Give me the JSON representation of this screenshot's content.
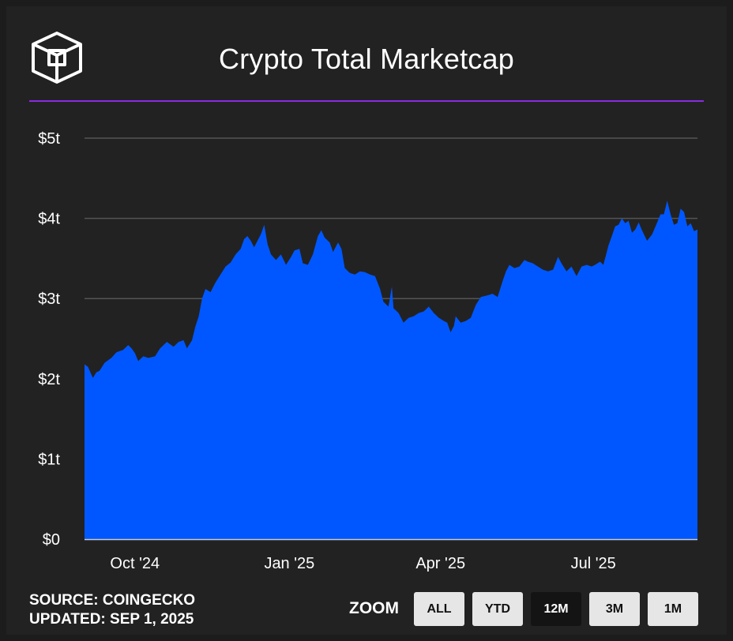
{
  "header": {
    "title": "Crypto Total Marketcap",
    "logo_icon": "cube-logo-icon"
  },
  "footer": {
    "source": "SOURCE: COINGECKO",
    "updated": "UPDATED: SEP 1, 2025",
    "zoom_label": "ZOOM",
    "zoom_buttons": [
      "ALL",
      "YTD",
      "12M",
      "3M",
      "1M"
    ],
    "zoom_selected": "12M"
  },
  "colors": {
    "background": "#222222",
    "area": "#0057ff",
    "accent_rule": "#8a2be2",
    "grid": "#555555"
  },
  "chart_data": {
    "type": "area",
    "title": "Crypto Total Marketcap",
    "xlabel": "",
    "ylabel": "",
    "x_tick_labels": [
      "Oct '24",
      "Jan '25",
      "Apr '25",
      "Jul '25"
    ],
    "x_ticks": [
      "2024-10-01",
      "2025-01-01",
      "2025-04-01",
      "2025-07-01"
    ],
    "y_tick_labels": [
      "$0",
      "$1t",
      "$2t",
      "$3t",
      "$4t",
      "$5t"
    ],
    "y_ticks": [
      0,
      1,
      2,
      3,
      4,
      5
    ],
    "ylim": [
      0,
      5
    ],
    "xlim": [
      "2024-09-01",
      "2025-09-01"
    ],
    "y_units": "trillion USD",
    "grid": true,
    "series": [
      {
        "values": [
          [
            "2024-09-01",
            2.18
          ],
          [
            "2024-09-03",
            2.15
          ],
          [
            "2024-09-06",
            2.01
          ],
          [
            "2024-09-08",
            2.08
          ],
          [
            "2024-09-10",
            2.1
          ],
          [
            "2024-09-13",
            2.2
          ],
          [
            "2024-09-17",
            2.26
          ],
          [
            "2024-09-20",
            2.33
          ],
          [
            "2024-09-24",
            2.36
          ],
          [
            "2024-09-27",
            2.42
          ],
          [
            "2024-09-29",
            2.38
          ],
          [
            "2024-10-01",
            2.32
          ],
          [
            "2024-10-03",
            2.22
          ],
          [
            "2024-10-06",
            2.28
          ],
          [
            "2024-10-09",
            2.26
          ],
          [
            "2024-10-13",
            2.28
          ],
          [
            "2024-10-16",
            2.38
          ],
          [
            "2024-10-20",
            2.46
          ],
          [
            "2024-10-24",
            2.4
          ],
          [
            "2024-10-27",
            2.46
          ],
          [
            "2024-10-30",
            2.48
          ],
          [
            "2024-11-01",
            2.38
          ],
          [
            "2024-11-04",
            2.48
          ],
          [
            "2024-11-06",
            2.65
          ],
          [
            "2024-11-08",
            2.78
          ],
          [
            "2024-11-10",
            3.0
          ],
          [
            "2024-11-12",
            3.12
          ],
          [
            "2024-11-15",
            3.08
          ],
          [
            "2024-11-18",
            3.2
          ],
          [
            "2024-11-21",
            3.3
          ],
          [
            "2024-11-24",
            3.4
          ],
          [
            "2024-11-27",
            3.45
          ],
          [
            "2024-11-30",
            3.55
          ],
          [
            "2024-12-03",
            3.62
          ],
          [
            "2024-12-05",
            3.74
          ],
          [
            "2024-12-07",
            3.78
          ],
          [
            "2024-12-09",
            3.72
          ],
          [
            "2024-12-11",
            3.64
          ],
          [
            "2024-12-13",
            3.72
          ],
          [
            "2024-12-15",
            3.8
          ],
          [
            "2024-12-17",
            3.92
          ],
          [
            "2024-12-19",
            3.68
          ],
          [
            "2024-12-21",
            3.55
          ],
          [
            "2024-12-24",
            3.48
          ],
          [
            "2024-12-27",
            3.55
          ],
          [
            "2024-12-30",
            3.42
          ],
          [
            "2025-01-02",
            3.52
          ],
          [
            "2025-01-04",
            3.6
          ],
          [
            "2025-01-07",
            3.62
          ],
          [
            "2025-01-09",
            3.44
          ],
          [
            "2025-01-12",
            3.42
          ],
          [
            "2025-01-15",
            3.55
          ],
          [
            "2025-01-18",
            3.78
          ],
          [
            "2025-01-20",
            3.85
          ],
          [
            "2025-01-22",
            3.76
          ],
          [
            "2025-01-25",
            3.7
          ],
          [
            "2025-01-27",
            3.58
          ],
          [
            "2025-01-30",
            3.7
          ],
          [
            "2025-02-01",
            3.62
          ],
          [
            "2025-02-03",
            3.38
          ],
          [
            "2025-02-06",
            3.32
          ],
          [
            "2025-02-09",
            3.3
          ],
          [
            "2025-02-12",
            3.34
          ],
          [
            "2025-02-15",
            3.33
          ],
          [
            "2025-02-18",
            3.3
          ],
          [
            "2025-02-21",
            3.28
          ],
          [
            "2025-02-24",
            3.12
          ],
          [
            "2025-02-26",
            2.96
          ],
          [
            "2025-03-01",
            2.9
          ],
          [
            "2025-03-03",
            3.15
          ],
          [
            "2025-03-04",
            2.88
          ],
          [
            "2025-03-07",
            2.82
          ],
          [
            "2025-03-10",
            2.7
          ],
          [
            "2025-03-13",
            2.76
          ],
          [
            "2025-03-16",
            2.78
          ],
          [
            "2025-03-19",
            2.82
          ],
          [
            "2025-03-22",
            2.84
          ],
          [
            "2025-03-25",
            2.9
          ],
          [
            "2025-03-28",
            2.82
          ],
          [
            "2025-03-31",
            2.76
          ],
          [
            "2025-04-03",
            2.72
          ],
          [
            "2025-04-05",
            2.7
          ],
          [
            "2025-04-07",
            2.58
          ],
          [
            "2025-04-09",
            2.66
          ],
          [
            "2025-04-10",
            2.78
          ],
          [
            "2025-04-13",
            2.7
          ],
          [
            "2025-04-16",
            2.72
          ],
          [
            "2025-04-19",
            2.76
          ],
          [
            "2025-04-22",
            2.92
          ],
          [
            "2025-04-25",
            3.02
          ],
          [
            "2025-04-29",
            3.04
          ],
          [
            "2025-05-02",
            3.06
          ],
          [
            "2025-05-05",
            3.02
          ],
          [
            "2025-05-08",
            3.22
          ],
          [
            "2025-05-10",
            3.34
          ],
          [
            "2025-05-12",
            3.42
          ],
          [
            "2025-05-15",
            3.38
          ],
          [
            "2025-05-18",
            3.4
          ],
          [
            "2025-05-21",
            3.48
          ],
          [
            "2025-05-23",
            3.46
          ],
          [
            "2025-05-26",
            3.44
          ],
          [
            "2025-05-29",
            3.4
          ],
          [
            "2025-06-01",
            3.36
          ],
          [
            "2025-06-04",
            3.34
          ],
          [
            "2025-06-07",
            3.36
          ],
          [
            "2025-06-10",
            3.52
          ],
          [
            "2025-06-12",
            3.44
          ],
          [
            "2025-06-15",
            3.34
          ],
          [
            "2025-06-18",
            3.4
          ],
          [
            "2025-06-21",
            3.28
          ],
          [
            "2025-06-24",
            3.4
          ],
          [
            "2025-06-27",
            3.42
          ],
          [
            "2025-06-30",
            3.4
          ],
          [
            "2025-07-02",
            3.42
          ],
          [
            "2025-07-05",
            3.46
          ],
          [
            "2025-07-07",
            3.42
          ],
          [
            "2025-07-09",
            3.58
          ],
          [
            "2025-07-10",
            3.66
          ],
          [
            "2025-07-12",
            3.78
          ],
          [
            "2025-07-14",
            3.9
          ],
          [
            "2025-07-16",
            3.92
          ],
          [
            "2025-07-18",
            4.0
          ],
          [
            "2025-07-20",
            3.94
          ],
          [
            "2025-07-22",
            3.97
          ],
          [
            "2025-07-24",
            3.82
          ],
          [
            "2025-07-26",
            3.86
          ],
          [
            "2025-07-28",
            3.95
          ],
          [
            "2025-07-30",
            3.85
          ],
          [
            "2025-08-02",
            3.72
          ],
          [
            "2025-08-05",
            3.8
          ],
          [
            "2025-08-08",
            3.95
          ],
          [
            "2025-08-10",
            4.05
          ],
          [
            "2025-08-12",
            4.05
          ],
          [
            "2025-08-14",
            4.22
          ],
          [
            "2025-08-16",
            4.05
          ],
          [
            "2025-08-18",
            3.92
          ],
          [
            "2025-08-20",
            3.94
          ],
          [
            "2025-08-22",
            4.12
          ],
          [
            "2025-08-24",
            4.08
          ],
          [
            "2025-08-26",
            3.9
          ],
          [
            "2025-08-28",
            3.94
          ],
          [
            "2025-08-30",
            3.84
          ],
          [
            "2025-09-01",
            3.86
          ]
        ]
      }
    ]
  }
}
